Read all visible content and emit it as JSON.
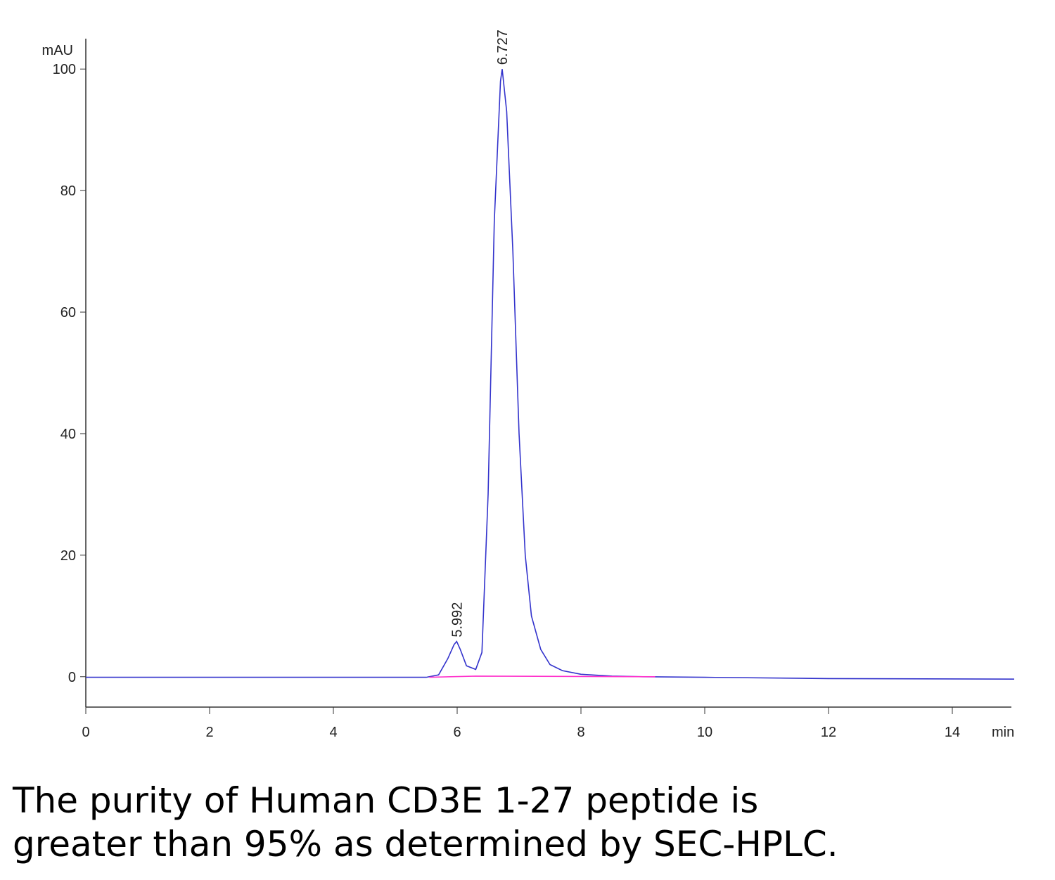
{
  "chart_data": {
    "type": "line",
    "y_label": "mAU",
    "x_label": "min",
    "xlim": [
      0,
      15
    ],
    "ylim": [
      -5,
      105
    ],
    "xticks": [
      0,
      2,
      4,
      6,
      8,
      10,
      12,
      14
    ],
    "yticks": [
      0,
      20,
      40,
      60,
      80,
      100
    ],
    "series": [
      {
        "color": "#3333cc",
        "x": [
          0,
          5.5,
          5.7,
          5.85,
          5.95,
          5.992,
          6.05,
          6.15,
          6.3,
          6.4,
          6.5,
          6.6,
          6.7,
          6.727,
          6.8,
          6.9,
          7.0,
          7.1,
          7.2,
          7.35,
          7.5,
          7.7,
          8.0,
          8.5,
          9.0,
          10,
          12,
          15
        ],
        "values": [
          -0.1,
          -0.1,
          0.3,
          3,
          5.3,
          5.8,
          4.5,
          1.8,
          1.2,
          4,
          30,
          75,
          98,
          100,
          93,
          70,
          40,
          20,
          10,
          4.5,
          2,
          1,
          0.4,
          0.1,
          0,
          -0.1,
          -0.3,
          -0.4
        ]
      },
      {
        "color": "#ff33cc",
        "x": [
          5.55,
          6.3,
          9.2
        ],
        "values": [
          -0.1,
          0.1,
          0
        ]
      }
    ],
    "annotations": [
      {
        "text": "5.992",
        "x": 5.992,
        "y": 5.8
      },
      {
        "text": "6.727",
        "x": 6.727,
        "y": 100
      }
    ]
  },
  "caption": [
    "The purity of Human CD3E 1-27 peptide is",
    "greater than 95% as determined by SEC-HPLC."
  ]
}
